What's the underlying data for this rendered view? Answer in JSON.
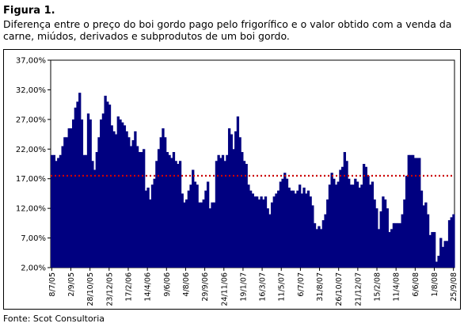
{
  "figure": {
    "label": "Figura 1.",
    "caption": "Diferença entre o preço do boi gordo pago pelo frigorífico e o valor obtido com a venda da carne, miúdos, derivados e subprodutos de um boi gordo.",
    "source": "Fonte: Scot Consultoria"
  },
  "colors": {
    "bars": "#000080",
    "reference_line": "#cc0000",
    "background": "#ffffff"
  },
  "chart_data": {
    "type": "bar",
    "title": "",
    "xlabel": "",
    "ylabel": "",
    "ylim": [
      2,
      37
    ],
    "yticks": [
      "2,00%",
      "7,00%",
      "12,00%",
      "17,00%",
      "22,00%",
      "27,00%",
      "32,00%",
      "37,00%"
    ],
    "xticks": [
      "8/7/05",
      "2/9/05",
      "28/10/05",
      "23/12/05",
      "17/2/06",
      "14/4/06",
      "9/6/06",
      "4/8/06",
      "29/9/06",
      "24/11/06",
      "19/1/07",
      "16/3/07",
      "11/5/07",
      "6/7/07",
      "31/8/07",
      "26/10/07",
      "21/12/07",
      "15/2/08",
      "11/4/08",
      "6/6/08",
      "1/8/08",
      "25/9/08"
    ],
    "reference_line": {
      "value": 17.5,
      "style": "dotted"
    },
    "grid": false,
    "legend": "none",
    "values": [
      21,
      21,
      20,
      20.5,
      21,
      22.5,
      24,
      24,
      25.5,
      25.5,
      27,
      29,
      30,
      31.5,
      27,
      21,
      21,
      28,
      27,
      20,
      18.5,
      21.5,
      24,
      27,
      28,
      31,
      30,
      29.5,
      26,
      25,
      24.5,
      27.5,
      27,
      26.5,
      26,
      25,
      24,
      22.5,
      23.5,
      25,
      22.5,
      21.5,
      21.5,
      22,
      15,
      15.5,
      13.5,
      16,
      17,
      20,
      22,
      24,
      25.5,
      24,
      21.5,
      21,
      20.5,
      21.5,
      20,
      19.5,
      20,
      14.5,
      13,
      13.5,
      15,
      16,
      18.5,
      16.5,
      16,
      13,
      13,
      13.5,
      15,
      16.5,
      12,
      13,
      13,
      20,
      21,
      20.5,
      21,
      20,
      21,
      25.5,
      24.5,
      22,
      25,
      27.5,
      24,
      21.5,
      20,
      19.5,
      16,
      15,
      14.5,
      14,
      14,
      13.5,
      14,
      13.5,
      14,
      12,
      11,
      13,
      14,
      14.5,
      15,
      16.5,
      17,
      18,
      17,
      15.5,
      15,
      15,
      14.5,
      15,
      16,
      14.5,
      15.5,
      14.5,
      15,
      14,
      12.5,
      9.5,
      8.5,
      9,
      8.5,
      10,
      11,
      13.5,
      16,
      18,
      17,
      16,
      16.5,
      18.5,
      19,
      21.5,
      20,
      17,
      16,
      16,
      17,
      16.5,
      15.5,
      16,
      19.5,
      19,
      17.5,
      16,
      16.5,
      13.5,
      12,
      8.5,
      11.5,
      14,
      13.5,
      12,
      8,
      8.5,
      9.5,
      9.5,
      9.5,
      9.5,
      11,
      13.5,
      17.5,
      21,
      21,
      21,
      20.5,
      20.5,
      20.5,
      15,
      12.5,
      13,
      11,
      7.5,
      8,
      8,
      3,
      4,
      7,
      5.5,
      6.5,
      6.5,
      10,
      10.5,
      11
    ]
  }
}
